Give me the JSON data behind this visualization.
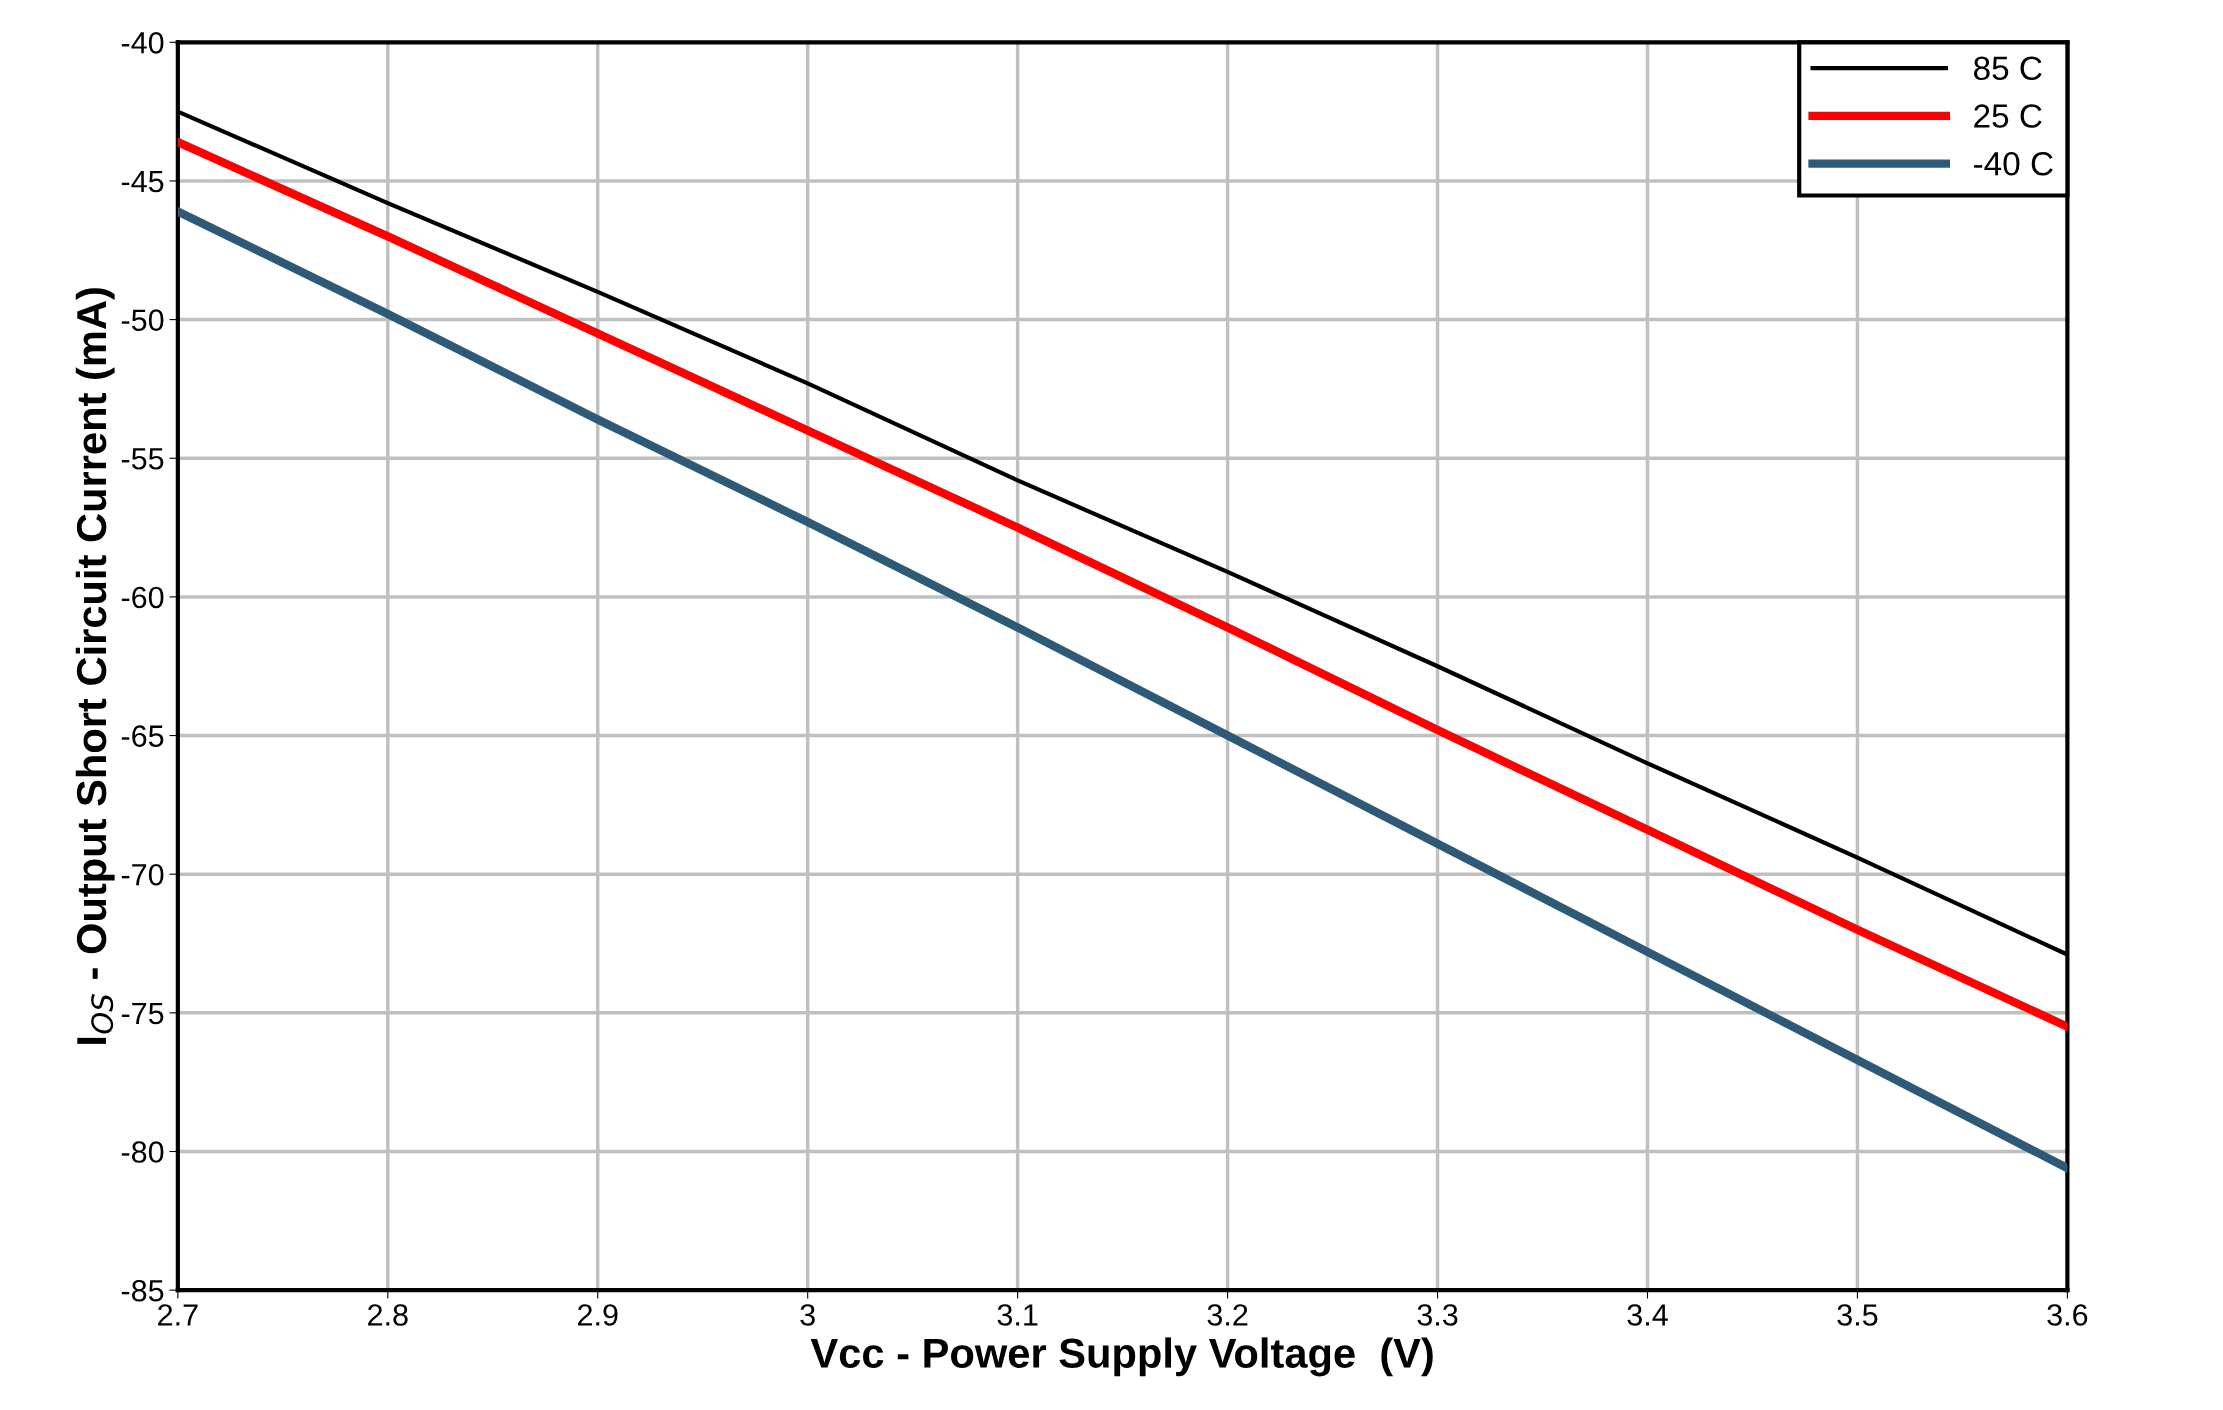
{
  "chart_data": {
    "type": "line",
    "xlabel": "Vcc - Power Supply Voltage  (V)",
    "ylabel": "I$_{OS}$ - Output Short Circuit Current (mA)",
    "x": [
      2.7,
      2.8,
      2.9,
      3.0,
      3.1,
      3.2,
      3.3,
      3.4,
      3.5,
      3.6
    ],
    "series": [
      {
        "name": "85 C",
        "color": "#000000",
        "values": [
          -42.5,
          -45.8,
          -49.0,
          -52.3,
          -55.8,
          -59.1,
          -62.5,
          -66.0,
          -69.4,
          -72.9
        ]
      },
      {
        "name": "25 C",
        "color": "#ff0000",
        "values": [
          -43.6,
          -47.0,
          -50.5,
          -54.0,
          -57.5,
          -61.1,
          -64.8,
          -68.4,
          -72.0,
          -75.5
        ]
      },
      {
        "name": "-40 C",
        "color": "#2e5a78",
        "values": [
          -46.1,
          -49.8,
          -53.6,
          -57.3,
          -61.1,
          -65.0,
          -68.9,
          -72.8,
          -76.7,
          -80.6
        ]
      }
    ],
    "xlim": [
      2.7,
      3.6
    ],
    "xticks": [
      2.7,
      2.8,
      2.9,
      3,
      3.1,
      3.2,
      3.3,
      3.4,
      3.5,
      3.6
    ],
    "ylim": [
      -85,
      -40
    ],
    "yticks": [
      -85,
      -80,
      -75,
      -70,
      -65,
      -60,
      -55,
      -50,
      -45,
      -40
    ],
    "grid": true,
    "legend": "top right",
    "marker": "none",
    "line_style": "solid"
  }
}
